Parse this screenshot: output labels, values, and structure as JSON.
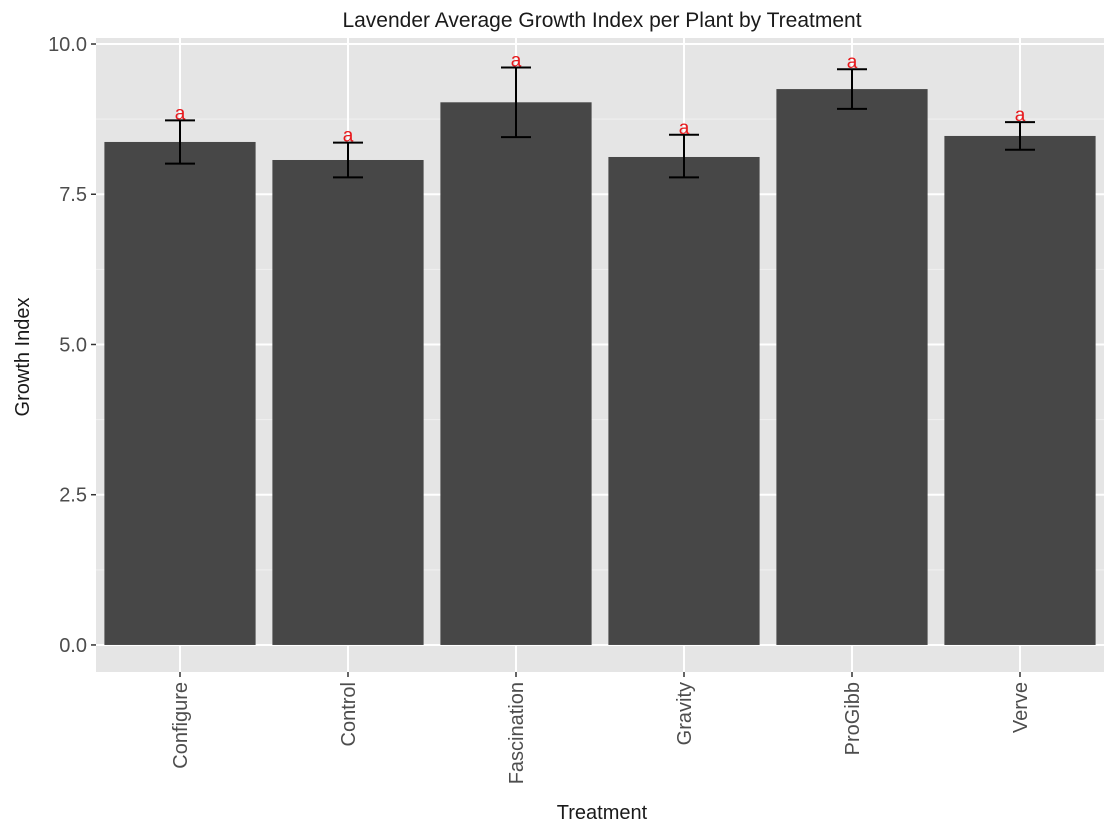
{
  "chart_data": {
    "type": "bar",
    "title": "Lavender Average Growth Index per Plant by Treatment",
    "xlabel": "Treatment",
    "ylabel": "Growth Index",
    "categories": [
      "Configure",
      "Control",
      "Fascination",
      "Gravity",
      "ProGibb",
      "Verve"
    ],
    "values": [
      8.37,
      8.07,
      9.03,
      8.12,
      9.25,
      8.47
    ],
    "error_low": [
      8.01,
      7.78,
      8.45,
      7.78,
      8.92,
      8.24
    ],
    "error_high": [
      8.73,
      8.36,
      9.61,
      8.49,
      9.58,
      8.7
    ],
    "significance_letters": [
      "a",
      "a",
      "a",
      "a",
      "a",
      "a"
    ],
    "ylim": [
      -0.45,
      10.1
    ],
    "yticks": [
      0.0,
      2.5,
      5.0,
      7.5,
      10.0
    ],
    "ytick_labels": [
      "0.0",
      "2.5",
      "5.0",
      "7.5",
      "10.0"
    ],
    "grid": true,
    "legend": "none",
    "colors": {
      "bar": "#474747",
      "panel": "#e5e5e5",
      "grid_major": "#ffffff",
      "grid_minor": "#f0f0f0",
      "error_bar": "#000000",
      "letter": "#e8181c",
      "text": "#1a1a1a",
      "tick_text": "#4d4d4d"
    }
  }
}
